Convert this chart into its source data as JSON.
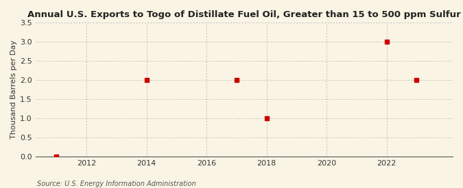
{
  "title": "Annual U.S. Exports to Togo of Distillate Fuel Oil, Greater than 15 to 500 ppm Sulfur",
  "ylabel": "Thousand Barrels per Day",
  "source": "Source: U.S. Energy Information Administration",
  "background_color": "#faf4e4",
  "plot_bg_color": "#faf4e4",
  "data_x": [
    2011,
    2014,
    2017,
    2018,
    2022,
    2023
  ],
  "data_y": [
    0.0,
    2.0,
    2.0,
    1.0,
    3.0,
    2.0
  ],
  "marker_color": "#cc0000",
  "marker_size": 4,
  "xlim": [
    2010.3,
    2024.2
  ],
  "ylim": [
    0.0,
    3.5
  ],
  "yticks": [
    0.0,
    0.5,
    1.0,
    1.5,
    2.0,
    2.5,
    3.0,
    3.5
  ],
  "xticks": [
    2012,
    2014,
    2016,
    2018,
    2020,
    2022
  ],
  "grid_color": "#aaaaaa",
  "title_fontsize": 9.5,
  "label_fontsize": 8,
  "tick_fontsize": 8,
  "source_fontsize": 7
}
